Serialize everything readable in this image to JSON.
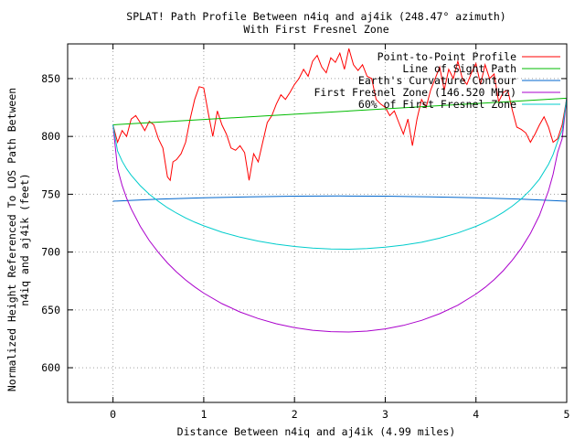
{
  "chart_data": {
    "type": "line",
    "title": "SPLAT! Path Profile Between n4iq and aj4ik (248.47° azimuth)",
    "subtitle": "With First Fresnel Zone",
    "xlabel": "Distance Between n4iq and aj4ik (4.99 miles)",
    "ylabel": "Normalized Height Referenced To LOS Path Between",
    "ylabel2": "n4iq and aj4ik (feet)",
    "xlim": [
      -0.5,
      5
    ],
    "ylim": [
      570,
      880
    ],
    "x_ticks": [
      "0",
      "1",
      "2",
      "3",
      "4",
      "5"
    ],
    "y_ticks": [
      "600",
      "650",
      "700",
      "750",
      "800",
      "850"
    ],
    "grid": true,
    "legend_position": "top-right",
    "series": [
      {
        "name": "Point-to-Point Profile",
        "color": "#ff0000",
        "x": [
          0,
          0.05,
          0.1,
          0.15,
          0.2,
          0.25,
          0.3,
          0.35,
          0.4,
          0.45,
          0.5,
          0.55,
          0.6,
          0.63,
          0.66,
          0.7,
          0.75,
          0.8,
          0.85,
          0.9,
          0.95,
          1.0,
          1.05,
          1.1,
          1.15,
          1.2,
          1.25,
          1.3,
          1.35,
          1.4,
          1.45,
          1.5,
          1.55,
          1.6,
          1.65,
          1.7,
          1.75,
          1.8,
          1.85,
          1.9,
          1.95,
          2.0,
          2.05,
          2.1,
          2.15,
          2.2,
          2.25,
          2.3,
          2.35,
          2.4,
          2.45,
          2.5,
          2.55,
          2.6,
          2.65,
          2.7,
          2.75,
          2.8,
          2.85,
          2.9,
          2.95,
          3.0,
          3.05,
          3.1,
          3.15,
          3.2,
          3.25,
          3.3,
          3.35,
          3.4,
          3.45,
          3.5,
          3.55,
          3.6,
          3.65,
          3.7,
          3.75,
          3.8,
          3.85,
          3.9,
          3.95,
          4.0,
          4.05,
          4.1,
          4.15,
          4.2,
          4.25,
          4.3,
          4.35,
          4.4,
          4.45,
          4.5,
          4.55,
          4.6,
          4.65,
          4.7,
          4.75,
          4.8,
          4.85,
          4.9,
          4.95,
          5.0
        ],
        "y": [
          810,
          795,
          805,
          800,
          815,
          818,
          812,
          805,
          813,
          810,
          798,
          790,
          765,
          762,
          778,
          780,
          785,
          795,
          815,
          832,
          843,
          842,
          820,
          800,
          822,
          810,
          802,
          790,
          788,
          792,
          786,
          762,
          785,
          778,
          795,
          812,
          818,
          828,
          836,
          832,
          838,
          845,
          850,
          858,
          852,
          865,
          870,
          860,
          855,
          868,
          864,
          872,
          858,
          876,
          862,
          857,
          862,
          852,
          850,
          832,
          828,
          825,
          818,
          822,
          812,
          802,
          815,
          792,
          815,
          832,
          825,
          840,
          850,
          860,
          840,
          858,
          850,
          865,
          850,
          845,
          855,
          863,
          845,
          862,
          850,
          854,
          830,
          838,
          840,
          823,
          808,
          806,
          803,
          795,
          802,
          810,
          817,
          808,
          795,
          798,
          810,
          833
        ]
      },
      {
        "name": "Line of Sight Path",
        "color": "#00bb00",
        "x": [
          0,
          5
        ],
        "y": [
          810,
          833
        ]
      },
      {
        "name": "Earth's Curvature Contour",
        "color": "#0066cc",
        "x": [
          0,
          0.5,
          1,
          1.5,
          2,
          2.5,
          3,
          3.5,
          4,
          4.5,
          5
        ],
        "y": [
          744,
          745.7,
          746.9,
          747.8,
          748.3,
          748.5,
          748.3,
          747.8,
          746.9,
          745.7,
          744
        ]
      },
      {
        "name": "First Fresnel Zone (146.520 MHz)",
        "color": "#aa00cc",
        "x": [
          0.0,
          0.05,
          0.1,
          0.15,
          0.2,
          0.3,
          0.4,
          0.5,
          0.6,
          0.7,
          0.8,
          0.9,
          1.0,
          1.2,
          1.4,
          1.6,
          1.8,
          2.0,
          2.2,
          2.4,
          2.6,
          2.8,
          3.0,
          3.2,
          3.4,
          3.6,
          3.8,
          4.0,
          4.1,
          4.2,
          4.3,
          4.4,
          4.5,
          4.6,
          4.7,
          4.8,
          4.85,
          4.9,
          4.95,
          5.0
        ],
        "y": [
          810.0,
          772.4,
          757.7,
          746.6,
          737.4,
          722.3,
          710.0,
          699.6,
          690.6,
          682.8,
          675.9,
          669.9,
          664.5,
          655.4,
          648.2,
          642.5,
          638.0,
          634.7,
          632.4,
          631.2,
          630.9,
          631.7,
          633.6,
          636.6,
          640.9,
          646.7,
          654.1,
          663.7,
          669.5,
          676.2,
          683.9,
          692.9,
          703.4,
          716.1,
          731.8,
          753.1,
          767.3,
          786.2,
          798.0,
          833.0
        ]
      },
      {
        "name": "60% of First Fresnel Zone",
        "color": "#00cccc",
        "x": [
          0.0,
          0.05,
          0.1,
          0.15,
          0.2,
          0.3,
          0.4,
          0.5,
          0.6,
          0.7,
          0.8,
          0.9,
          1.0,
          1.2,
          1.4,
          1.6,
          1.8,
          2.0,
          2.2,
          2.4,
          2.6,
          2.8,
          3.0,
          3.2,
          3.4,
          3.6,
          3.8,
          4.0,
          4.1,
          4.2,
          4.3,
          4.4,
          4.5,
          4.6,
          4.7,
          4.8,
          4.85,
          4.9,
          4.95,
          5.0
        ],
        "y": [
          810.0,
          787.4,
          778.6,
          772.0,
          766.4,
          757.4,
          750.0,
          743.8,
          738.4,
          733.7,
          729.5,
          725.9,
          722.7,
          717.2,
          712.9,
          709.5,
          706.8,
          704.8,
          703.4,
          702.7,
          702.5,
          703.0,
          704.2,
          706.0,
          708.5,
          712.0,
          716.5,
          722.2,
          725.7,
          729.7,
          734.3,
          739.7,
          746.0,
          753.7,
          763.1,
          775.9,
          784.4,
          795.7,
          805.0,
          833.0
        ]
      }
    ]
  }
}
